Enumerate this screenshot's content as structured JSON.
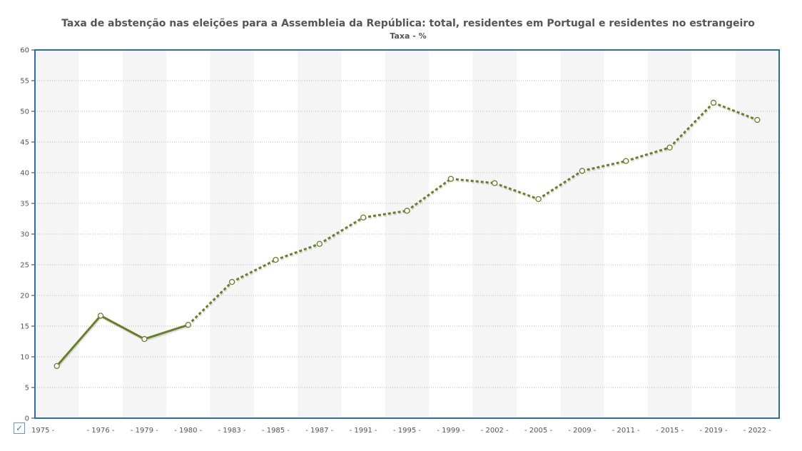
{
  "colors": {
    "series": "#6b7d28",
    "frame": "#2a6db0",
    "band": "#f5f5f5",
    "grid": "#bbbbbb",
    "marker_fill": "#ffffff"
  },
  "legend": {
    "checkbox_glyph": "✓"
  },
  "chart_data": {
    "type": "line",
    "title": "Taxa de abstenção nas eleições para a Assembleia da República: total, residentes em Portugal e residentes no estrangeiro",
    "subtitle": "Taxa - %",
    "xlabel": "",
    "ylabel": "",
    "ylim": [
      0,
      60
    ],
    "y_ticks": [
      0,
      5,
      10,
      15,
      20,
      25,
      30,
      35,
      40,
      45,
      50,
      55,
      60
    ],
    "grid": true,
    "categories": [
      "1975",
      "1976",
      "1979",
      "1980",
      "1983",
      "1985",
      "1987",
      "1991",
      "1995",
      "1999",
      "2002",
      "2005",
      "2009",
      "2011",
      "2015",
      "2019",
      "2022"
    ],
    "x_tick_labels": [
      "1975 -",
      "- 1976 -",
      "- 1979 -",
      "- 1980 -",
      "- 1983 -",
      "- 1985 -",
      "- 1987 -",
      "- 1991 -",
      "- 1995 -",
      "- 1999 -",
      "- 2002 -",
      "- 2005 -",
      "- 2009 -",
      "- 2011 -",
      "- 2015 -",
      "- 2019 -",
      "- 2022 -"
    ],
    "series": [
      {
        "values": [
          8.5,
          16.7,
          12.9,
          15.2,
          22.2,
          25.8,
          28.4,
          32.7,
          33.8,
          39.0,
          38.3,
          35.7,
          40.3,
          41.9,
          44.1,
          51.4,
          48.6
        ],
        "line_style_segments": [
          "solid",
          "solid",
          "solid",
          "dashed",
          "dashed",
          "dashed",
          "dashed",
          "dashed",
          "dashed",
          "dashed",
          "dashed",
          "dashed",
          "dashed",
          "dashed",
          "dashed",
          "dashed"
        ]
      }
    ]
  }
}
